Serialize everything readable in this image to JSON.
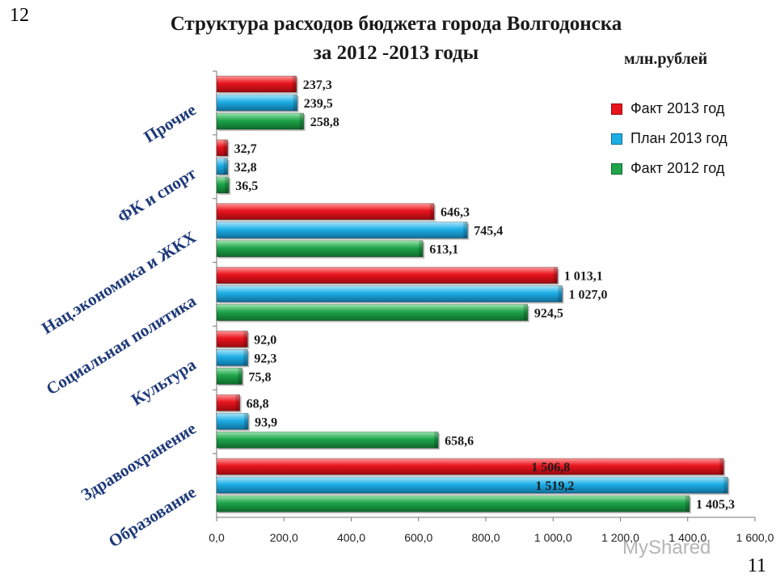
{
  "page": {
    "number_top": "12",
    "number_bottom": "11",
    "title_line1": "Структура расходов бюджета города Волгодонска",
    "title_line2": "за 2012 -2013 годы",
    "unit": "млн.рублей",
    "watermark": "MyShared"
  },
  "chart_data": {
    "type": "bar",
    "orientation": "horizontal",
    "categories": [
      "Прочие",
      "ФК и спорт",
      "Нац.экономика и ЖКХ",
      "Социальная политика",
      "Культура",
      "Здравоохранение",
      "Образование"
    ],
    "series": [
      {
        "name": "Факт 2013 год",
        "color": "#e8141e",
        "values": [
          237.3,
          32.7,
          646.3,
          1013.1,
          92.0,
          68.8,
          1506.8
        ],
        "labels": [
          "237,3",
          "32,7",
          "646,3",
          "1 013,1",
          "92,0",
          "68,8",
          "1 506,8"
        ]
      },
      {
        "name": "План 2013 год",
        "color": "#1eaee6",
        "values": [
          239.5,
          32.8,
          745.4,
          1027.0,
          92.3,
          93.9,
          1519.2
        ],
        "labels": [
          "239,5",
          "32,8",
          "745,4",
          "1 027,0",
          "92,3",
          "93,9",
          "1 519,2"
        ]
      },
      {
        "name": "Факт 2012 год",
        "color": "#1fa44a",
        "values": [
          258.8,
          36.5,
          613.1,
          924.5,
          75.8,
          658.6,
          1405.3
        ],
        "labels": [
          "258,8",
          "36,5",
          "613,1",
          "924,5",
          "75,8",
          "658,6",
          "1 405,3"
        ]
      }
    ],
    "xlim": [
      0,
      1600
    ],
    "xticks": [
      0,
      200,
      400,
      600,
      800,
      1000,
      1200,
      1400,
      1600
    ],
    "xtick_labels": [
      "0,0",
      "200,0",
      "400,0",
      "600,0",
      "800,0",
      "1 000,0",
      "1 200,0",
      "1 400,0",
      "1 600,0"
    ],
    "legend_position": "top-right",
    "grid": false
  }
}
